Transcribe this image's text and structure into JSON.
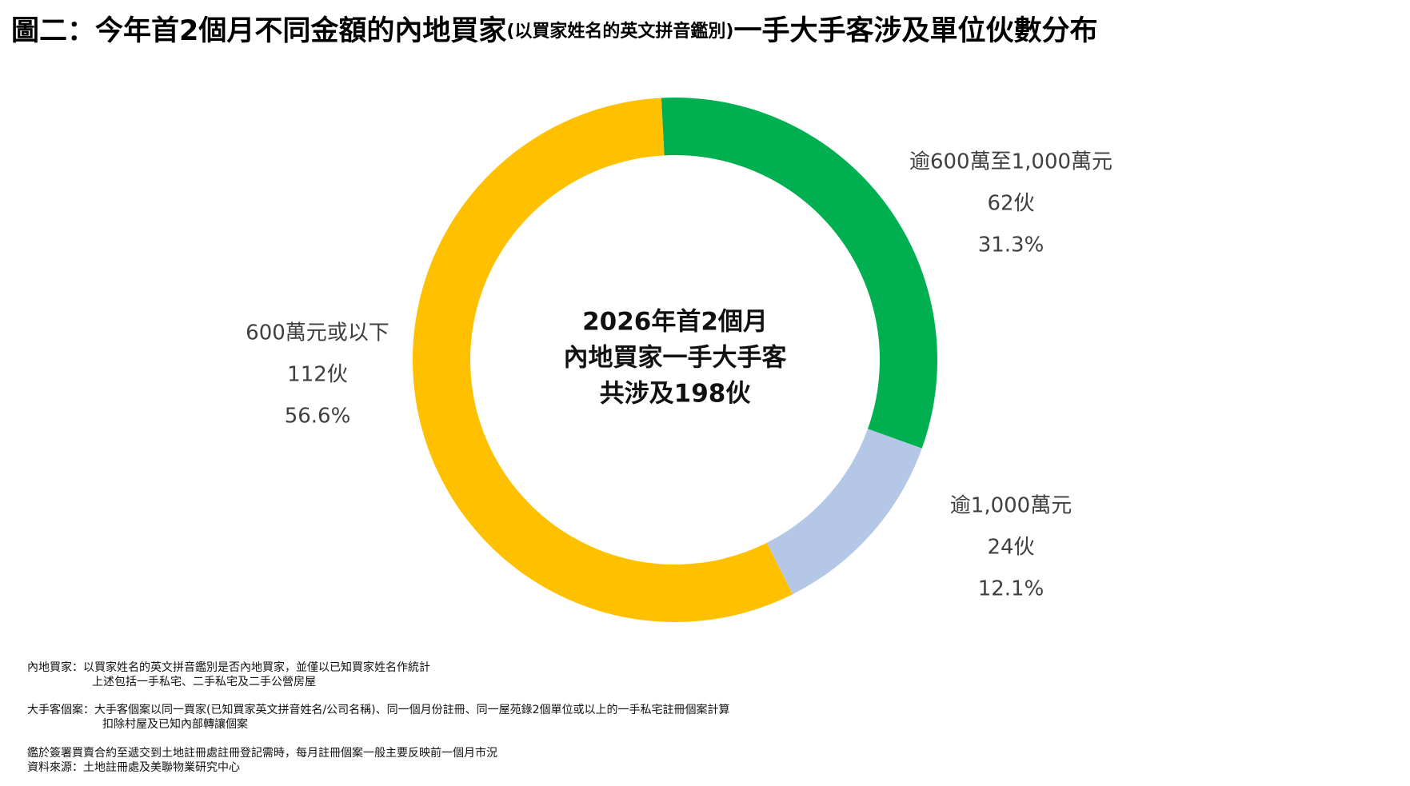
{
  "chart_data": {
    "type": "donut",
    "title_parts": [
      "圖二：今年首2個月不同金額的內地買家",
      "(以買家姓名的英文拼音鑑別)",
      "一手大手客涉及單位伙數分布"
    ],
    "center_text": [
      "2026年首2個月",
      "內地買家一手大手客",
      "共涉及198伙"
    ],
    "categories": [
      "逾600萬至1,000萬元",
      "逾1,000萬元",
      "600萬元或以下"
    ],
    "values": [
      62,
      24,
      112
    ],
    "value_labels": [
      "62伙",
      "24伙",
      "112伙"
    ],
    "shares": [
      31.3,
      12.1,
      56.6
    ],
    "share_labels": [
      "31.3%",
      "12.1%",
      "56.6%"
    ],
    "colors": [
      "#00b050",
      "#b4c7e7",
      "#ffc000"
    ],
    "notes": [
      [
        "內地買家：以買家姓名的英文拼音鑑別是否內地買家，並僅以已知買家姓名作統計",
        "上述包括一手私宅、二手私宅及二手公營房屋"
      ],
      [
        "大手客個案：大手客個案以同一買家(已知買家英文拼音姓名/公司名稱)、同一個月份註冊、同一屋苑錄2個單位或以上的一手私宅註冊個案計算",
        "扣除村屋及已知內部轉讓個案"
      ],
      [
        "鑑於簽署買賣合約至遞交到土地註冊處註冊登記需時，每月註冊個案一般主要反映前一個月市況",
        "資料來源：土地註冊處及美聯物業研究中心"
      ]
    ]
  }
}
